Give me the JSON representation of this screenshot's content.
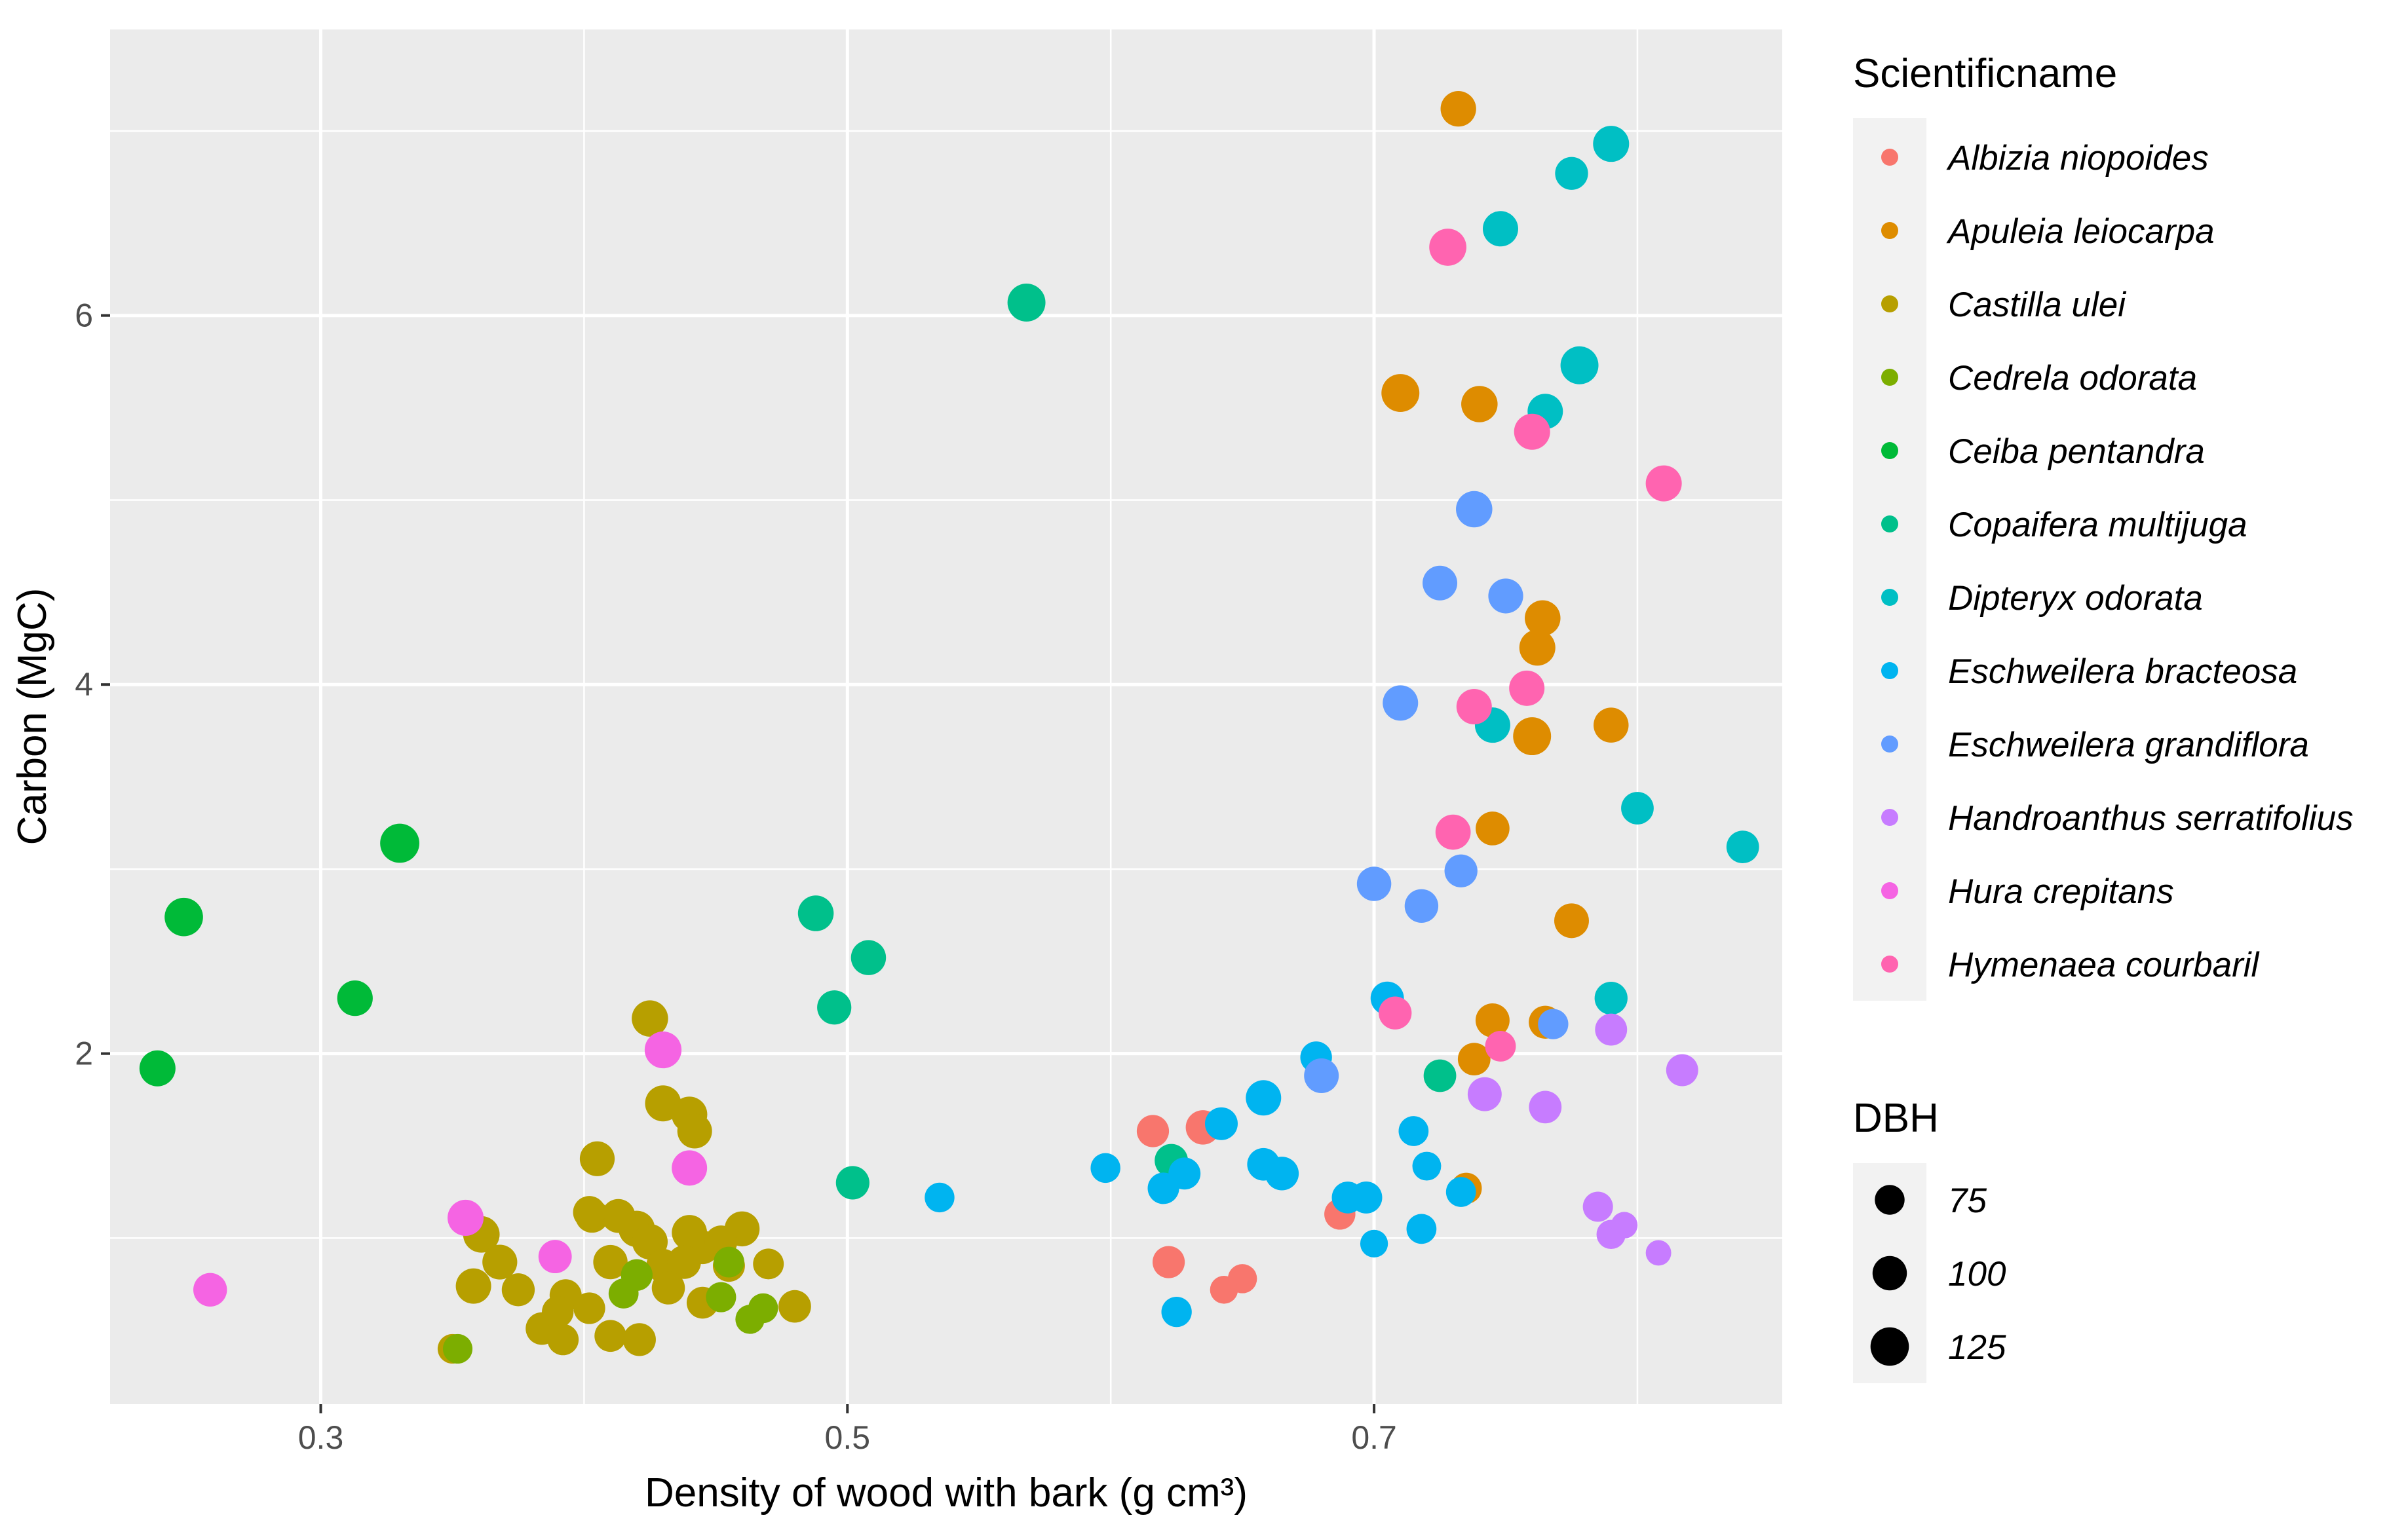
{
  "chart_data": {
    "type": "scatter",
    "xlabel": "Density of wood with bark (g cm³)",
    "ylabel": "Carbon (MgC)",
    "xlim": [
      0.22,
      0.855
    ],
    "ylim": [
      0.1,
      7.55
    ],
    "x_ticks": [
      0.3,
      0.5,
      0.7
    ],
    "x_tick_labels": [
      "0.3",
      "0.5",
      "0.7"
    ],
    "y_ticks": [
      2,
      4,
      6
    ],
    "y_tick_labels": [
      "2",
      "4",
      "6"
    ],
    "grid": true,
    "color_legend": {
      "title": "Scientificname",
      "placement": "right",
      "entries": [
        {
          "name": "Albizia niopoides",
          "color": "#F8766D"
        },
        {
          "name": "Apuleia leiocarpa",
          "color": "#DE8C00"
        },
        {
          "name": "Castilla ulei",
          "color": "#B79F00"
        },
        {
          "name": "Cedrela odorata",
          "color": "#7CAE00"
        },
        {
          "name": "Ceiba pentandra",
          "color": "#00BA38"
        },
        {
          "name": "Copaifera multijuga",
          "color": "#00C08B"
        },
        {
          "name": "Dipteryx odorata",
          "color": "#00BFC4"
        },
        {
          "name": "Eschweilera bracteosa",
          "color": "#00B4F0"
        },
        {
          "name": "Eschweilera grandiflora",
          "color": "#619CFF"
        },
        {
          "name": "Handroanthus serratifolius",
          "color": "#C77CFF"
        },
        {
          "name": "Hura crepitans",
          "color": "#F564E3"
        },
        {
          "name": "Hymenaea courbaril",
          "color": "#FF64B0"
        }
      ]
    },
    "size_legend": {
      "title": "DBH",
      "placement": "right",
      "entries": [
        {
          "label": "75",
          "value": 75
        },
        {
          "label": "100",
          "value": 100
        },
        {
          "label": "125",
          "value": 125
        }
      ]
    },
    "series": [
      {
        "name": "Albizia niopoides",
        "points": [
          [
            0.616,
            1.58,
            88
          ],
          [
            0.635,
            1.6,
            100
          ],
          [
            0.625,
            1.37,
            92
          ],
          [
            0.622,
            0.87,
            88
          ],
          [
            0.687,
            1.13,
            82
          ],
          [
            0.65,
            0.78,
            72
          ],
          [
            0.643,
            0.72,
            66
          ]
        ]
      },
      {
        "name": "Apuleia leiocarpa",
        "points": [
          [
            0.732,
            7.12,
            107
          ],
          [
            0.71,
            5.58,
            122
          ],
          [
            0.74,
            5.52,
            112
          ],
          [
            0.764,
            4.36,
            108
          ],
          [
            0.762,
            4.2,
            110
          ],
          [
            0.76,
            3.72,
            122
          ],
          [
            0.79,
            3.78,
            104
          ],
          [
            0.745,
            3.22,
            97
          ],
          [
            0.775,
            2.72,
            102
          ],
          [
            0.745,
            2.18,
            98
          ],
          [
            0.765,
            2.17,
            92
          ],
          [
            0.738,
            1.97,
            90
          ],
          [
            0.735,
            1.27,
            82
          ]
        ]
      },
      {
        "name": "Castilla ulei",
        "points": [
          [
            0.425,
            2.19,
            112
          ],
          [
            0.43,
            1.73,
            110
          ],
          [
            0.44,
            1.67,
            108
          ],
          [
            0.442,
            1.58,
            102
          ],
          [
            0.405,
            1.43,
            103
          ],
          [
            0.403,
            1.12,
            95
          ],
          [
            0.361,
            1.02,
            113
          ],
          [
            0.368,
            0.87,
            103
          ],
          [
            0.358,
            0.74,
            106
          ],
          [
            0.375,
            0.72,
            92
          ],
          [
            0.393,
            0.69,
            87
          ],
          [
            0.384,
            0.51,
            90
          ],
          [
            0.392,
            0.45,
            83
          ],
          [
            0.39,
            0.6,
            85
          ],
          [
            0.42,
            1.05,
            112
          ],
          [
            0.425,
            0.98,
            107
          ],
          [
            0.413,
            1.12,
            97
          ],
          [
            0.402,
            1.14,
            90
          ],
          [
            0.41,
            0.87,
            100
          ],
          [
            0.43,
            0.85,
            96
          ],
          [
            0.445,
            0.95,
            95
          ],
          [
            0.44,
            1.03,
            105
          ],
          [
            0.46,
            1.05,
            104
          ],
          [
            0.452,
            0.98,
            90
          ],
          [
            0.438,
            0.87,
            96
          ],
          [
            0.432,
            0.73,
            93
          ],
          [
            0.455,
            0.85,
            87
          ],
          [
            0.445,
            0.65,
            86
          ],
          [
            0.47,
            0.86,
            80
          ],
          [
            0.48,
            0.63,
            90
          ],
          [
            0.402,
            0.62,
            85
          ],
          [
            0.41,
            0.47,
            86
          ],
          [
            0.421,
            0.45,
            92
          ],
          [
            0.35,
            0.4,
            74
          ]
        ]
      },
      {
        "name": "Cedrela odorata",
        "points": [
          [
            0.42,
            0.8,
            85
          ],
          [
            0.415,
            0.7,
            76
          ],
          [
            0.455,
            0.87,
            80
          ],
          [
            0.452,
            0.68,
            77
          ],
          [
            0.468,
            0.62,
            75
          ],
          [
            0.463,
            0.56,
            72
          ],
          [
            0.352,
            0.4,
            74
          ]
        ]
      },
      {
        "name": "Ceiba pentandra",
        "points": [
          [
            0.248,
            2.74,
            125
          ],
          [
            0.33,
            3.14,
            130
          ],
          [
            0.313,
            2.3,
            107
          ],
          [
            0.238,
            1.92,
            110
          ]
        ]
      },
      {
        "name": "Copaifera multijuga",
        "points": [
          [
            0.568,
            6.07,
            122
          ],
          [
            0.488,
            2.76,
            108
          ],
          [
            0.508,
            2.52,
            104
          ],
          [
            0.495,
            2.25,
            99
          ],
          [
            0.502,
            1.3,
            95
          ],
          [
            0.623,
            1.42,
            94
          ],
          [
            0.725,
            1.88,
            90
          ]
        ]
      },
      {
        "name": "Dipteryx odorata",
        "points": [
          [
            0.79,
            6.93,
            110
          ],
          [
            0.775,
            6.77,
            92
          ],
          [
            0.748,
            6.47,
            106
          ],
          [
            0.778,
            5.73,
            122
          ],
          [
            0.765,
            5.48,
            106
          ],
          [
            0.745,
            3.78,
            106
          ],
          [
            0.8,
            3.33,
            90
          ],
          [
            0.84,
            3.12,
            90
          ],
          [
            0.79,
            2.3,
            92
          ]
        ]
      },
      {
        "name": "Eschweilera bracteosa",
        "points": [
          [
            0.598,
            1.38,
            75
          ],
          [
            0.535,
            1.22,
            75
          ],
          [
            0.625,
            0.6,
            78
          ],
          [
            0.642,
            1.62,
            91
          ],
          [
            0.62,
            1.27,
            84
          ],
          [
            0.628,
            1.35,
            87
          ],
          [
            0.658,
            1.76,
            106
          ],
          [
            0.658,
            1.4,
            90
          ],
          [
            0.665,
            1.35,
            96
          ],
          [
            0.678,
            1.98,
            85
          ],
          [
            0.69,
            1.22,
            86
          ],
          [
            0.697,
            1.22,
            87
          ],
          [
            0.7,
            0.97,
            65
          ],
          [
            0.715,
            1.58,
            76
          ],
          [
            0.718,
            1.05,
            76
          ],
          [
            0.72,
            1.39,
            70
          ],
          [
            0.733,
            1.25,
            76
          ],
          [
            0.705,
            2.3,
            94
          ]
        ]
      },
      {
        "name": "Eschweilera grandiflora",
        "points": [
          [
            0.738,
            4.95,
            112
          ],
          [
            0.725,
            4.55,
            102
          ],
          [
            0.75,
            4.48,
            103
          ],
          [
            0.71,
            3.9,
            106
          ],
          [
            0.733,
            2.99,
            92
          ],
          [
            0.7,
            2.92,
            100
          ],
          [
            0.718,
            2.8,
            96
          ],
          [
            0.768,
            2.16,
            78
          ],
          [
            0.68,
            1.88,
            102
          ]
        ]
      },
      {
        "name": "Handroanthus serratifolius",
        "points": [
          [
            0.79,
            2.13,
            87
          ],
          [
            0.817,
            1.91,
            87
          ],
          [
            0.742,
            1.78,
            98
          ],
          [
            0.765,
            1.71,
            90
          ],
          [
            0.785,
            1.17,
            77
          ],
          [
            0.79,
            1.02,
            72
          ],
          [
            0.795,
            1.07,
            60
          ],
          [
            0.808,
            0.92,
            55
          ]
        ]
      },
      {
        "name": "Hura crepitans",
        "points": [
          [
            0.43,
            2.02,
            115
          ],
          [
            0.355,
            1.11,
            110
          ],
          [
            0.44,
            1.38,
            106
          ],
          [
            0.389,
            0.9,
            94
          ],
          [
            0.258,
            0.72,
            96
          ]
        ]
      },
      {
        "name": "Hymenaea courbaril",
        "points": [
          [
            0.728,
            6.37,
            117
          ],
          [
            0.76,
            5.37,
            110
          ],
          [
            0.81,
            5.09,
            110
          ],
          [
            0.758,
            3.98,
            106
          ],
          [
            0.738,
            3.88,
            106
          ],
          [
            0.73,
            3.2,
            105
          ],
          [
            0.708,
            2.22,
            92
          ],
          [
            0.748,
            2.04,
            80
          ]
        ]
      }
    ]
  }
}
